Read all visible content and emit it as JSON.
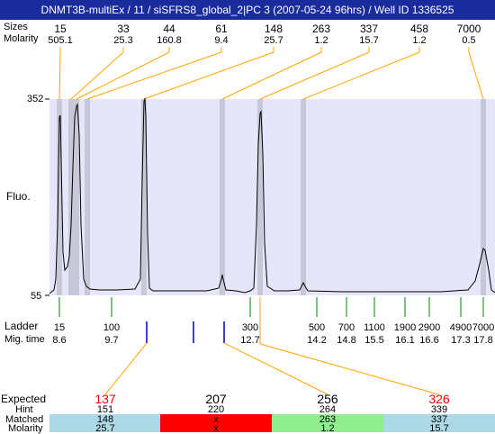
{
  "title": "DNMT3B-multiEx / 11 / siSFRS8_global_2|PC 3 (2007-05-24 96hrs) / Well ID 1336525",
  "top_labels": {
    "size": "Sizes",
    "molarity": "Molarity"
  },
  "peaks": [
    {
      "size": "15",
      "molarity": "505.1"
    },
    {
      "size": "33",
      "molarity": "25.3"
    },
    {
      "size": "44",
      "molarity": "160.8"
    },
    {
      "size": "61",
      "molarity": "9.4"
    },
    {
      "size": "148",
      "molarity": "25.7"
    },
    {
      "size": "263",
      "molarity": "1.2"
    },
    {
      "size": "337",
      "molarity": "15.7"
    },
    {
      "size": "458",
      "molarity": "1.2"
    },
    {
      "size": "7000",
      "molarity": "0.5"
    }
  ],
  "y_axis": {
    "label": "Fluo.",
    "max": "352",
    "min": "55"
  },
  "ladder": {
    "label": "Ladder",
    "mig_label": "Mig. time",
    "items": [
      {
        "size": "15",
        "time": "8.6"
      },
      {
        "size": "100",
        "time": "9.7"
      },
      {
        "size": "300",
        "time": "12.7"
      },
      {
        "size": "500",
        "time": "14.2"
      },
      {
        "size": "700",
        "time": "14.8"
      },
      {
        "size": "1100",
        "time": "15.5"
      },
      {
        "size": "1900",
        "time": "16.1"
      },
      {
        "size": "2900",
        "time": "16.6"
      },
      {
        "size": "4900",
        "time": "17.3"
      },
      {
        "size": "7000",
        "time": "17.8"
      }
    ]
  },
  "expected_section": {
    "labels": {
      "expected": "Expected",
      "hint": "Hint",
      "matched": "Matched",
      "molarity": "Molarity"
    },
    "columns": [
      {
        "expected": "137",
        "hint": "151",
        "matched": "148",
        "molarity": "25.7",
        "bg": "#add8e6",
        "exp_color": "#ff0000"
      },
      {
        "expected": "207",
        "hint": "220",
        "matched": "x",
        "molarity": "x",
        "bg": "#ff0000",
        "exp_color": "#000000"
      },
      {
        "expected": "256",
        "hint": "264",
        "matched": "263",
        "molarity": "1.2",
        "bg": "#90ee90",
        "exp_color": "#000000"
      },
      {
        "expected": "326",
        "hint": "339",
        "matched": "337",
        "molarity": "15.7",
        "bg": "#add8e6",
        "exp_color": "#ff0000"
      }
    ]
  },
  "colors": {
    "title_bg": "#1a2c9c",
    "plot_bg": "#e6e6fa",
    "band": "#c8c8d8",
    "connector": "#ffa500",
    "ladder_tick": "#008000",
    "marker": "#0000cc"
  }
}
